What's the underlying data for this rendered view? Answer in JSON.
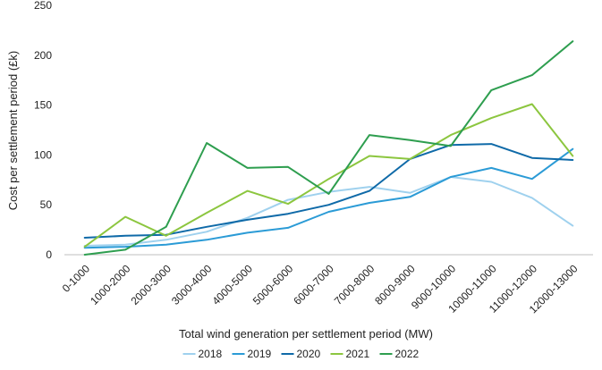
{
  "chart_data": {
    "type": "line",
    "title": "",
    "xlabel": "Total wind generation per settlement period (MW)",
    "ylabel": "Cost per settlement period (£k)",
    "ylim": [
      0,
      250
    ],
    "yticks": [
      0,
      50,
      100,
      150,
      200,
      250
    ],
    "grid": false,
    "legend_position": "bottom",
    "categories": [
      "0-1000",
      "1000-2000",
      "2000-3000",
      "3000-4000",
      "4000-5000",
      "5000-6000",
      "6000-7000",
      "7000-8000",
      "8000-9000",
      "9000-10000",
      "10000-11000",
      "11000-12000",
      "12000-13000"
    ],
    "series": [
      {
        "name": "2018",
        "color": "#9fd1ee",
        "values": [
          9,
          10,
          15,
          23,
          37,
          55,
          63,
          68,
          62,
          78,
          73,
          57,
          29
        ]
      },
      {
        "name": "2019",
        "color": "#2b9bd6",
        "values": [
          7,
          8,
          10,
          15,
          22,
          27,
          43,
          52,
          58,
          78,
          87,
          76,
          106
        ]
      },
      {
        "name": "2020",
        "color": "#0f6aa8",
        "values": [
          17,
          19,
          20,
          28,
          35,
          41,
          50,
          64,
          96,
          110,
          111,
          97,
          95
        ]
      },
      {
        "name": "2021",
        "color": "#8cc63f",
        "values": [
          8,
          38,
          19,
          42,
          64,
          51,
          76,
          99,
          96,
          120,
          137,
          151,
          99
        ]
      },
      {
        "name": "2022",
        "color": "#2e9e4f",
        "values": [
          0,
          5,
          28,
          112,
          87,
          88,
          61,
          120,
          115,
          109,
          165,
          180,
          214
        ]
      }
    ]
  }
}
